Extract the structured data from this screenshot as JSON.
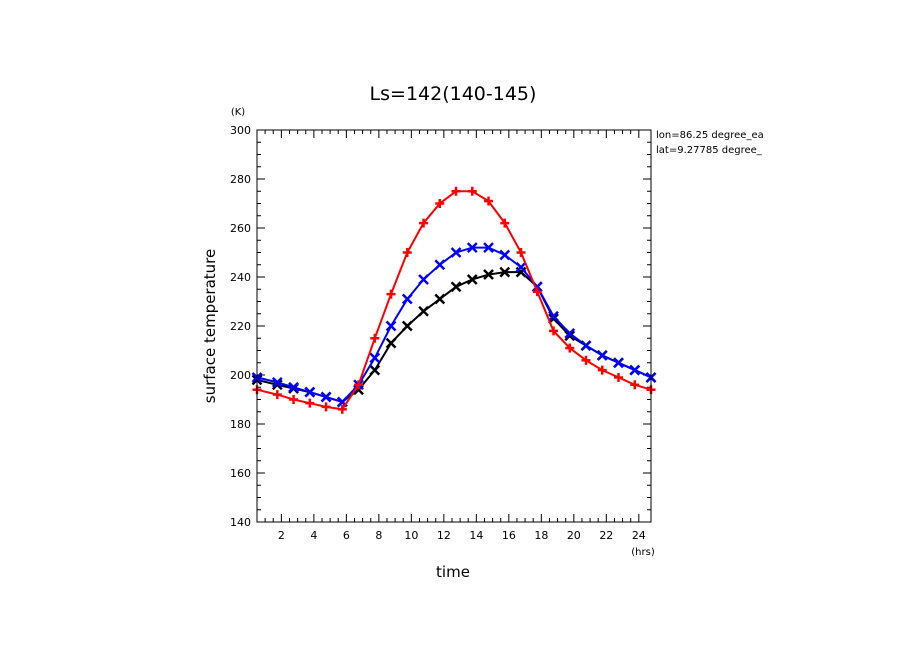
{
  "chart_data": {
    "type": "line",
    "title": "Ls=142(140-145)",
    "xlabel": "time",
    "ylabel": "surface temperature",
    "x_unit": "(hrs)",
    "y_unit": "(K)",
    "xlim": [
      0.5,
      24.75
    ],
    "ylim": [
      140,
      300
    ],
    "x_ticks": [
      2,
      4,
      6,
      8,
      10,
      12,
      14,
      16,
      18,
      20,
      22,
      24
    ],
    "y_ticks": [
      140,
      160,
      180,
      200,
      220,
      240,
      260,
      280,
      300
    ],
    "annotations": [
      "lon=86.25 degree_ea",
      "lat=9.27785 degree_"
    ],
    "grid": false,
    "x": [
      0.5,
      1.75,
      2.75,
      3.75,
      4.75,
      5.75,
      6.75,
      7.75,
      8.75,
      9.75,
      10.75,
      11.75,
      12.75,
      13.75,
      14.75,
      15.75,
      16.75,
      17.75,
      18.75,
      19.75,
      20.75,
      21.75,
      22.75,
      23.75,
      24.75
    ],
    "series": [
      {
        "color": "#ff0000",
        "marker": "plus",
        "values": [
          194,
          192,
          190,
          188.5,
          187,
          186,
          196,
          215,
          233,
          250,
          262,
          270,
          275,
          275,
          271,
          262,
          250,
          234,
          218,
          211,
          206,
          202,
          199,
          196,
          194
        ]
      },
      {
        "color": "#0000ff",
        "marker": "x",
        "values": [
          199,
          197,
          195,
          193,
          191,
          189,
          196,
          207,
          220,
          231,
          239,
          245,
          250,
          252,
          252,
          249,
          244,
          236,
          224,
          217,
          212,
          208,
          205,
          202,
          199
        ]
      },
      {
        "color": "#000000",
        "marker": "x",
        "values": [
          198,
          196,
          194.5,
          193,
          191,
          189,
          194,
          202,
          213,
          220,
          226,
          231,
          236,
          239,
          241,
          242,
          242,
          236,
          223,
          216,
          212,
          208,
          205,
          202,
          199
        ]
      }
    ]
  }
}
